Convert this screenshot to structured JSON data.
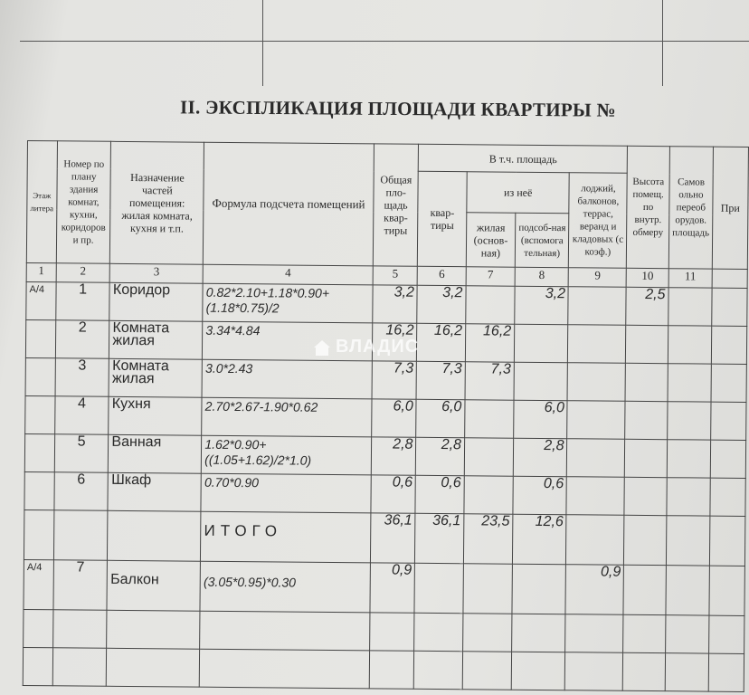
{
  "title": "II. ЭКСПЛИКАЦИЯ ПЛОЩАДИ КВАРТИРЫ №",
  "headers": {
    "c1": "Этаж литера",
    "c2": "Номер по плану здания комнат, кухни, коридоров и пр.",
    "c3": "Назначение частей помещения: жилая комната, кухня и т.п.",
    "c4": "Формула подсчета помещений",
    "c5": "Общая пло-щадь квар-тиры",
    "group": "В т.ч. площадь",
    "c6": "квар-тиры",
    "sub": "из неё",
    "c7": "жилая (основ-ная)",
    "c8": "подсоб-ная (вспомога тельная)",
    "c9": "лоджий, балконов, террас, веранд и кладовых (с коэф.)",
    "c10": "Высота помещ. по внутр. обмеру",
    "c11": "Самов ольно переоб орудов. площадь",
    "c12": "При"
  },
  "col_numbers": [
    "1",
    "2",
    "3",
    "4",
    "5",
    "6",
    "7",
    "8",
    "9",
    "10",
    "11",
    ""
  ],
  "rows": [
    {
      "floor": "А/4",
      "num": "1",
      "name": "Коридор",
      "formula": "0.82*2.10+1.18*0.90+(1.18*0.75)/2",
      "total": "3,2",
      "apt": "3,2",
      "living": "",
      "aux": "3,2",
      "loggia": "",
      "height": "2,5",
      "extra": ""
    },
    {
      "floor": "",
      "num": "2",
      "name": "Комната жилая",
      "formula": "3.34*4.84",
      "total": "16,2",
      "apt": "16,2",
      "living": "16,2",
      "aux": "",
      "loggia": "",
      "height": "",
      "extra": ""
    },
    {
      "floor": "",
      "num": "3",
      "name": "Комната жилая",
      "formula": "3.0*2.43",
      "total": "7,3",
      "apt": "7,3",
      "living": "7,3",
      "aux": "",
      "loggia": "",
      "height": "",
      "extra": ""
    },
    {
      "floor": "",
      "num": "4",
      "name": "Кухня",
      "formula": "2.70*2.67-1.90*0.62",
      "total": "6,0",
      "apt": "6,0",
      "living": "",
      "aux": "6,0",
      "loggia": "",
      "height": "",
      "extra": ""
    },
    {
      "floor": "",
      "num": "5",
      "name": "Ванная",
      "formula": "1.62*0.90+((1.05+1.62)/2*1.0)",
      "total": "2,8",
      "apt": "2,8",
      "living": "",
      "aux": "2,8",
      "loggia": "",
      "height": "",
      "extra": ""
    },
    {
      "floor": "",
      "num": "6",
      "name": "Шкаф",
      "formula": "0.70*0.90",
      "total": "0,6",
      "apt": "0,6",
      "living": "",
      "aux": "0,6",
      "loggia": "",
      "height": "",
      "extra": ""
    }
  ],
  "total_row": {
    "label": "ИТОГО",
    "total": "36,1",
    "apt": "36,1",
    "living": "23,5",
    "aux": "12,6"
  },
  "balcony": {
    "floor": "А/4",
    "num": "7",
    "name": "Балкон",
    "formula": "(3.05*0.95)*0.30",
    "total": "0,9",
    "loggia": "0,9"
  },
  "watermark": "ВЛАДИС"
}
